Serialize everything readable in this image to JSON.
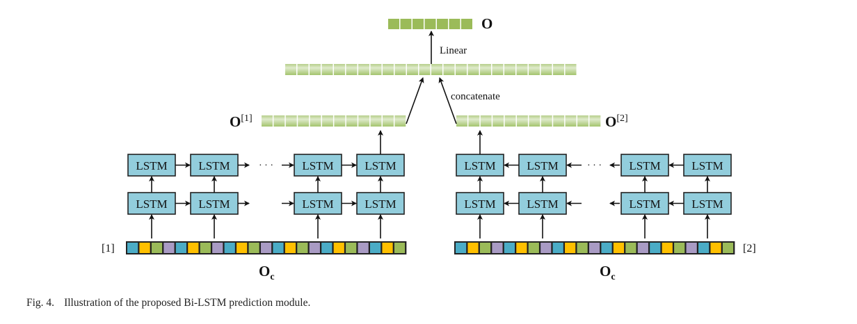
{
  "diagram": {
    "cell_label": "LSTM",
    "ellipsis": "· · ·",
    "output_label": "O",
    "linear_label": "Linear",
    "concat_label": "concatenate",
    "left_output": {
      "base": "O",
      "sup": "[1]"
    },
    "right_output": {
      "base": "O",
      "sup": "[2]"
    },
    "left_input": {
      "tag": "[1]",
      "base": "O",
      "sub": "c"
    },
    "right_input": {
      "tag": "[2]",
      "base": "O",
      "sub": "c"
    },
    "input_cell_colors": [
      "#4bacc6",
      "#ffc000",
      "#9bbb59",
      "#a99bc4"
    ],
    "lstm_fill": "#92cddc",
    "vector_fill": "#9bbb59"
  },
  "caption": {
    "fig": "Fig. 4.",
    "text": "Illustration of the proposed Bi-LSTM prediction module."
  }
}
